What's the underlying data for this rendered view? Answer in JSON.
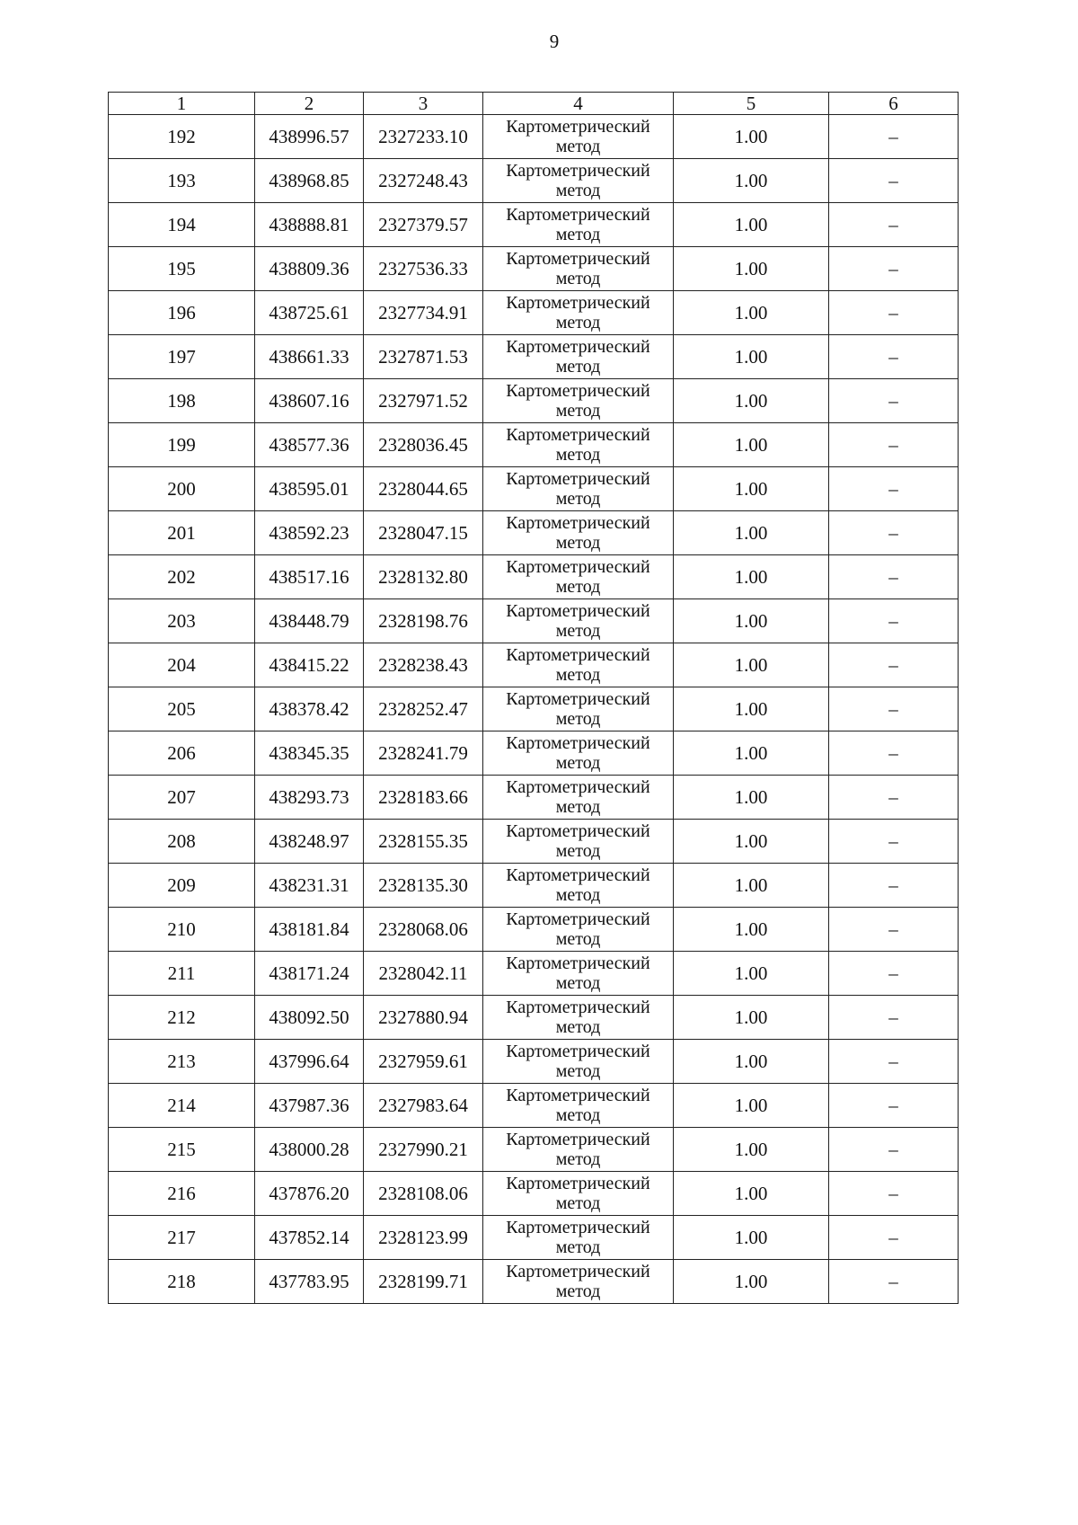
{
  "page_number": "9",
  "table": {
    "headers": [
      "1",
      "2",
      "3",
      "4",
      "5",
      "6"
    ],
    "method_line1": "Картометрический",
    "method_line2": "метод",
    "rows": [
      [
        "192",
        "438996.57",
        "2327233.10",
        "1.00",
        "–"
      ],
      [
        "193",
        "438968.85",
        "2327248.43",
        "1.00",
        "–"
      ],
      [
        "194",
        "438888.81",
        "2327379.57",
        "1.00",
        "–"
      ],
      [
        "195",
        "438809.36",
        "2327536.33",
        "1.00",
        "–"
      ],
      [
        "196",
        "438725.61",
        "2327734.91",
        "1.00",
        "–"
      ],
      [
        "197",
        "438661.33",
        "2327871.53",
        "1.00",
        "–"
      ],
      [
        "198",
        "438607.16",
        "2327971.52",
        "1.00",
        "–"
      ],
      [
        "199",
        "438577.36",
        "2328036.45",
        "1.00",
        "–"
      ],
      [
        "200",
        "438595.01",
        "2328044.65",
        "1.00",
        "–"
      ],
      [
        "201",
        "438592.23",
        "2328047.15",
        "1.00",
        "–"
      ],
      [
        "202",
        "438517.16",
        "2328132.80",
        "1.00",
        "–"
      ],
      [
        "203",
        "438448.79",
        "2328198.76",
        "1.00",
        "–"
      ],
      [
        "204",
        "438415.22",
        "2328238.43",
        "1.00",
        "–"
      ],
      [
        "205",
        "438378.42",
        "2328252.47",
        "1.00",
        "–"
      ],
      [
        "206",
        "438345.35",
        "2328241.79",
        "1.00",
        "–"
      ],
      [
        "207",
        "438293.73",
        "2328183.66",
        "1.00",
        "–"
      ],
      [
        "208",
        "438248.97",
        "2328155.35",
        "1.00",
        "–"
      ],
      [
        "209",
        "438231.31",
        "2328135.30",
        "1.00",
        "–"
      ],
      [
        "210",
        "438181.84",
        "2328068.06",
        "1.00",
        "–"
      ],
      [
        "211",
        "438171.24",
        "2328042.11",
        "1.00",
        "–"
      ],
      [
        "212",
        "438092.50",
        "2327880.94",
        "1.00",
        "–"
      ],
      [
        "213",
        "437996.64",
        "2327959.61",
        "1.00",
        "–"
      ],
      [
        "214",
        "437987.36",
        "2327983.64",
        "1.00",
        "–"
      ],
      [
        "215",
        "438000.28",
        "2327990.21",
        "1.00",
        "–"
      ],
      [
        "216",
        "437876.20",
        "2328108.06",
        "1.00",
        "–"
      ],
      [
        "217",
        "437852.14",
        "2328123.99",
        "1.00",
        "–"
      ],
      [
        "218",
        "437783.95",
        "2328199.71",
        "1.00",
        "–"
      ]
    ]
  }
}
